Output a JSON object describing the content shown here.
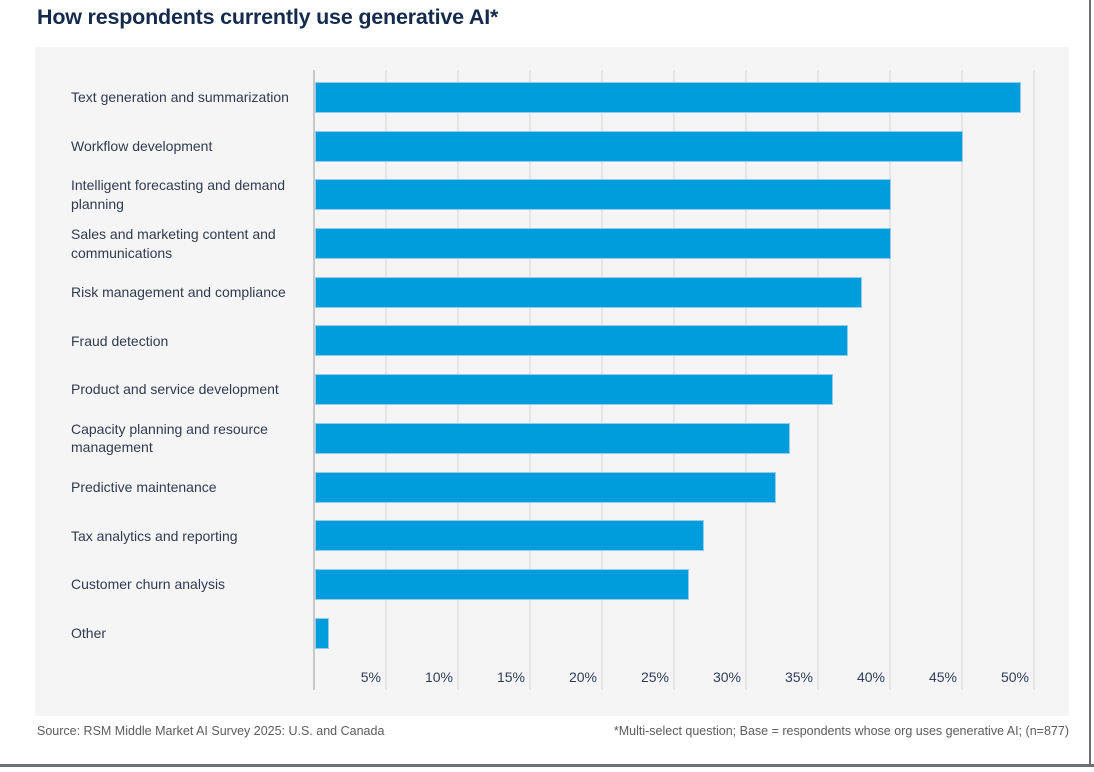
{
  "title": "How respondents currently use generative AI*",
  "footer": {
    "source": "Source: RSM Middle Market AI Survey 2025: U.S. and Canada",
    "note": "*Multi-select question; Base = respondents whose org uses generative AI; (n=877)"
  },
  "colors": {
    "bar_fill": "#009DDC",
    "bar_stroke": "#93CBEC",
    "title_text": "#142B4D",
    "category_text": "#2F3B4F",
    "tick_text": "#2E3D59",
    "panel_background": "#F5F5F6",
    "gridline": "#E5E5E7",
    "axis_line": "#C8C8CA",
    "footer_text": "#5C5C5E",
    "page_edge": "#6E7277"
  },
  "chart_data": {
    "type": "bar",
    "orientation": "horizontal",
    "title": "How respondents currently use generative AI*",
    "categories": [
      "Text generation and summarization",
      "Workflow development",
      "Intelligent forecasting and demand planning",
      "Sales and marketing content and communications",
      "Risk management and compliance",
      "Fraud detection",
      "Product and service development",
      "Capacity planning and resource management",
      "Predictive maintenance",
      "Tax analytics and reporting",
      "Customer churn analysis",
      "Other"
    ],
    "values": [
      49,
      45,
      40,
      40,
      38,
      37,
      36,
      33,
      32,
      27,
      26,
      1
    ],
    "unit": "%",
    "x_tick_labels": [
      "5%",
      "10%",
      "15%",
      "20%",
      "25%",
      "30%",
      "35%",
      "40%",
      "45%",
      "50%"
    ],
    "x_tick_values": [
      5,
      10,
      15,
      20,
      25,
      30,
      35,
      40,
      45,
      50
    ],
    "xlim": [
      0,
      52.5
    ],
    "xlabel": "",
    "ylabel": "",
    "grid": true,
    "legend": false
  }
}
